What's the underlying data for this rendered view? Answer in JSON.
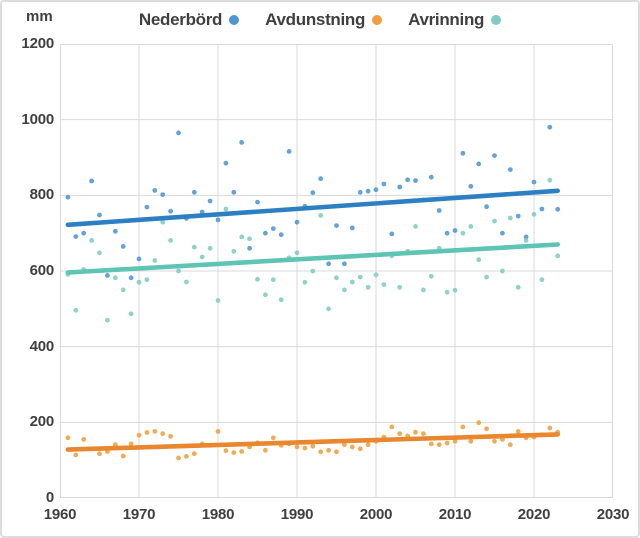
{
  "chart_data": {
    "type": "scatter",
    "title": "",
    "ylabel": "mm",
    "xlabel": "",
    "xlim": [
      1960,
      2030
    ],
    "ylim": [
      0,
      1200
    ],
    "x_ticks": [
      1960,
      1970,
      1980,
      1990,
      2000,
      2010,
      2020,
      2030
    ],
    "y_ticks": [
      0,
      200,
      400,
      600,
      800,
      1000,
      1200
    ],
    "grid": true,
    "legend_position": "top",
    "years": [
      1961,
      1962,
      1963,
      1964,
      1965,
      1966,
      1967,
      1968,
      1969,
      1970,
      1971,
      1972,
      1973,
      1974,
      1975,
      1976,
      1977,
      1978,
      1979,
      1980,
      1981,
      1982,
      1983,
      1984,
      1985,
      1986,
      1987,
      1988,
      1989,
      1990,
      1991,
      1992,
      1993,
      1994,
      1995,
      1996,
      1997,
      1998,
      1999,
      2000,
      2001,
      2002,
      2003,
      2004,
      2005,
      2006,
      2007,
      2008,
      2009,
      2010,
      2011,
      2012,
      2013,
      2014,
      2015,
      2016,
      2017,
      2018,
      2019,
      2020,
      2021,
      2022,
      2023
    ],
    "series": [
      {
        "name": "Nederbörd",
        "dot_color": "#4e96d1",
        "line_color": "#2d7fc3",
        "values": [
          795,
          691,
          700,
          838,
          748,
          588,
          705,
          665,
          582,
          632,
          769,
          813,
          802,
          758,
          965,
          739,
          808,
          756,
          785,
          735,
          885,
          808,
          940,
          660,
          782,
          700,
          712,
          696,
          916,
          729,
          771,
          807,
          844,
          619,
          720,
          619,
          714,
          808,
          811,
          815,
          830,
          698,
          822,
          841,
          839,
          788,
          848,
          760,
          700,
          707,
          911,
          824,
          883,
          770,
          905,
          700,
          868,
          745,
          690,
          835,
          764,
          980,
          763
        ],
        "trend": {
          "start_year": 1961,
          "start_value": 722,
          "end_year": 2023,
          "end_value": 812
        }
      },
      {
        "name": "Avdunstning",
        "dot_color": "#f09f3e",
        "line_color": "#e8872e",
        "values": [
          159,
          114,
          155,
          130,
          117,
          123,
          141,
          111,
          143,
          166,
          173,
          176,
          170,
          163,
          106,
          110,
          117,
          143,
          139,
          176,
          125,
          120,
          123,
          135,
          146,
          126,
          159,
          139,
          143,
          135,
          132,
          137,
          122,
          126,
          122,
          141,
          135,
          130,
          141,
          150,
          161,
          188,
          170,
          164,
          174,
          170,
          143,
          141,
          145,
          150,
          188,
          150,
          199,
          183,
          150,
          155,
          141,
          176,
          159,
          161,
          167,
          185,
          174
        ],
        "trend": {
          "start_year": 1961,
          "start_value": 128,
          "end_year": 2023,
          "end_value": 168
        }
      },
      {
        "name": "Avrinning",
        "dot_color": "#7ecdc2",
        "line_color": "#5ec4b4",
        "values": [
          591,
          496,
          604,
          681,
          648,
          470,
          582,
          550,
          487,
          570,
          577,
          628,
          729,
          681,
          600,
          571,
          663,
          637,
          660,
          522,
          764,
          652,
          690,
          685,
          578,
          537,
          577,
          524,
          635,
          648,
          570,
          600,
          747,
          500,
          582,
          550,
          571,
          584,
          557,
          590,
          564,
          640,
          557,
          652,
          718,
          550,
          586,
          660,
          544,
          549,
          700,
          718,
          630,
          584,
          732,
          600,
          740,
          557,
          681,
          750,
          577,
          840,
          640
        ],
        "trend": {
          "start_year": 1961,
          "start_value": 596,
          "end_year": 2023,
          "end_value": 670
        }
      }
    ],
    "style": {
      "grid_color": "#d9d9d9",
      "text_color": "#3f3f3f",
      "background": "#ffffff"
    }
  }
}
